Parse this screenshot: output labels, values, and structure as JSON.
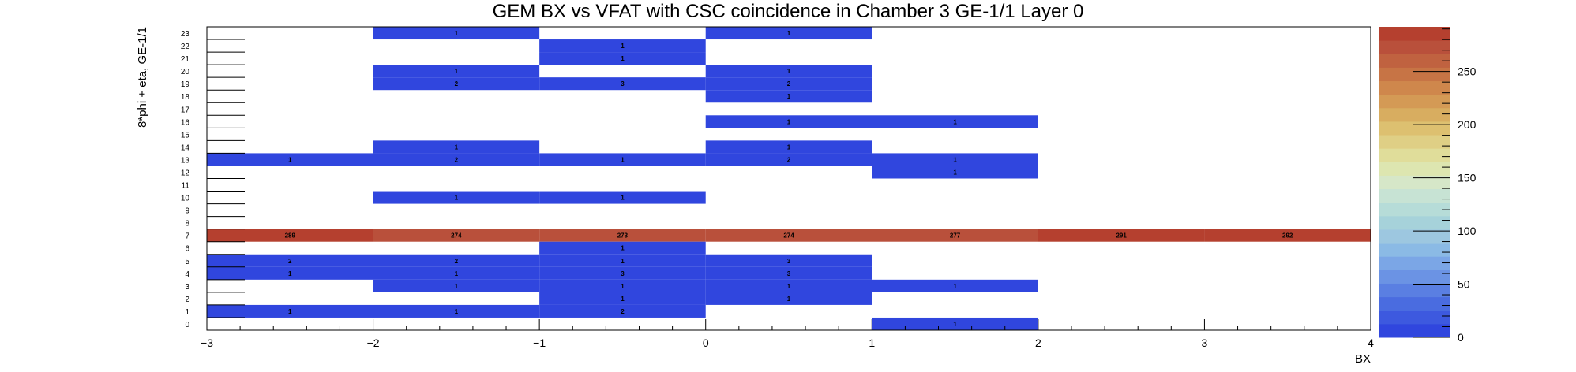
{
  "chart_data": {
    "type": "heatmap",
    "title": "GEM BX vs VFAT with CSC coincidence in Chamber 3 GE-1/1 Layer 0",
    "xlabel": "BX",
    "ylabel": "8*phi + eta, GE-1/1",
    "xlim": [
      -3,
      4
    ],
    "ylim": [
      0,
      24
    ],
    "x_ticks": [
      "−3",
      "−2",
      "−1",
      "0",
      "1",
      "2",
      "3",
      "4"
    ],
    "y_ticks": [
      "0",
      "1",
      "2",
      "3",
      "4",
      "5",
      "6",
      "7",
      "8",
      "9",
      "10",
      "11",
      "12",
      "13",
      "14",
      "15",
      "16",
      "17",
      "18",
      "19",
      "20",
      "21",
      "22",
      "23"
    ],
    "colorbar": {
      "min": 0,
      "max": 292,
      "ticks": [
        "0",
        "50",
        "100",
        "150",
        "200",
        "250"
      ],
      "colors": [
        "#3046de",
        "#3d59df",
        "#4a6ce0",
        "#5a7fe2",
        "#6b93e4",
        "#7ba6e6",
        "#8bbae5",
        "#9dc7e0",
        "#a6d2da",
        "#b6dcd8",
        "#c7e3d4",
        "#d6e7c8",
        "#dde6b0",
        "#e0dd9a",
        "#dfcf85",
        "#ddc070",
        "#d8ad60",
        "#d49a55",
        "#cf874c",
        "#c77445",
        "#c06240",
        "#b9503b",
        "#b5402f"
      ]
    },
    "cells": [
      {
        "x": -2.5,
        "y": 23,
        "value": 0,
        "label": ""
      },
      {
        "x": -1.5,
        "y": 23,
        "value": 1,
        "label": "1"
      },
      {
        "x": 0.5,
        "y": 23,
        "value": 1,
        "label": "1"
      },
      {
        "x": -0.5,
        "y": 22,
        "value": 1,
        "label": "1"
      },
      {
        "x": -0.5,
        "y": 21,
        "value": 1,
        "label": "1"
      },
      {
        "x": -1.5,
        "y": 20,
        "value": 1,
        "label": "1"
      },
      {
        "x": 0.5,
        "y": 20,
        "value": 1,
        "label": "1"
      },
      {
        "x": -1.5,
        "y": 19,
        "value": 2,
        "label": "2"
      },
      {
        "x": -0.5,
        "y": 19,
        "value": 3,
        "label": "3"
      },
      {
        "x": 0.5,
        "y": 19,
        "value": 2,
        "label": "2"
      },
      {
        "x": 0.5,
        "y": 18,
        "value": 1,
        "label": "1"
      },
      {
        "x": 0.5,
        "y": 16,
        "value": 1,
        "label": "1"
      },
      {
        "x": 1.5,
        "y": 16,
        "value": 1,
        "label": "1"
      },
      {
        "x": -1.5,
        "y": 14,
        "value": 1,
        "label": "1"
      },
      {
        "x": 0.5,
        "y": 14,
        "value": 1,
        "label": "1"
      },
      {
        "x": -2.5,
        "y": 13,
        "value": 1,
        "label": "1"
      },
      {
        "x": -1.5,
        "y": 13,
        "value": 2,
        "label": "2"
      },
      {
        "x": -0.5,
        "y": 13,
        "value": 1,
        "label": "1"
      },
      {
        "x": 0.5,
        "y": 13,
        "value": 2,
        "label": "2"
      },
      {
        "x": 1.5,
        "y": 13,
        "value": 1,
        "label": "1"
      },
      {
        "x": 1.5,
        "y": 12,
        "value": 1,
        "label": "1"
      },
      {
        "x": -1.5,
        "y": 10,
        "value": 1,
        "label": "1"
      },
      {
        "x": -0.5,
        "y": 10,
        "value": 1,
        "label": "1"
      },
      {
        "x": -2.5,
        "y": 7,
        "value": 289,
        "label": "289"
      },
      {
        "x": -1.5,
        "y": 7,
        "value": 274,
        "label": "274"
      },
      {
        "x": -0.5,
        "y": 7,
        "value": 273,
        "label": "273"
      },
      {
        "x": 0.5,
        "y": 7,
        "value": 274,
        "label": "274"
      },
      {
        "x": 1.5,
        "y": 7,
        "value": 277,
        "label": "277"
      },
      {
        "x": 2.5,
        "y": 7,
        "value": 291,
        "label": "291"
      },
      {
        "x": 3.5,
        "y": 7,
        "value": 292,
        "label": "292"
      },
      {
        "x": -0.5,
        "y": 6,
        "value": 1,
        "label": "1"
      },
      {
        "x": -2.5,
        "y": 5,
        "value": 2,
        "label": "2"
      },
      {
        "x": -1.5,
        "y": 5,
        "value": 2,
        "label": "2"
      },
      {
        "x": -0.5,
        "y": 5,
        "value": 1,
        "label": "1"
      },
      {
        "x": 0.5,
        "y": 5,
        "value": 3,
        "label": "3"
      },
      {
        "x": -2.5,
        "y": 4,
        "value": 1,
        "label": "1"
      },
      {
        "x": -1.5,
        "y": 4,
        "value": 1,
        "label": "1"
      },
      {
        "x": -0.5,
        "y": 4,
        "value": 3,
        "label": "3"
      },
      {
        "x": 0.5,
        "y": 4,
        "value": 3,
        "label": "3"
      },
      {
        "x": -1.5,
        "y": 3,
        "value": 1,
        "label": "1"
      },
      {
        "x": -0.5,
        "y": 3,
        "value": 1,
        "label": "1"
      },
      {
        "x": 0.5,
        "y": 3,
        "value": 1,
        "label": "1"
      },
      {
        "x": 1.5,
        "y": 3,
        "value": 1,
        "label": "1"
      },
      {
        "x": -0.5,
        "y": 2,
        "value": 1,
        "label": "1"
      },
      {
        "x": 0.5,
        "y": 2,
        "value": 1,
        "label": "1"
      },
      {
        "x": -2.5,
        "y": 1,
        "value": 1,
        "label": "1"
      },
      {
        "x": -1.5,
        "y": 1,
        "value": 1,
        "label": "1"
      },
      {
        "x": -0.5,
        "y": 1,
        "value": 2,
        "label": "2"
      },
      {
        "x": 1.5,
        "y": 0,
        "value": 1,
        "label": "1"
      }
    ]
  }
}
